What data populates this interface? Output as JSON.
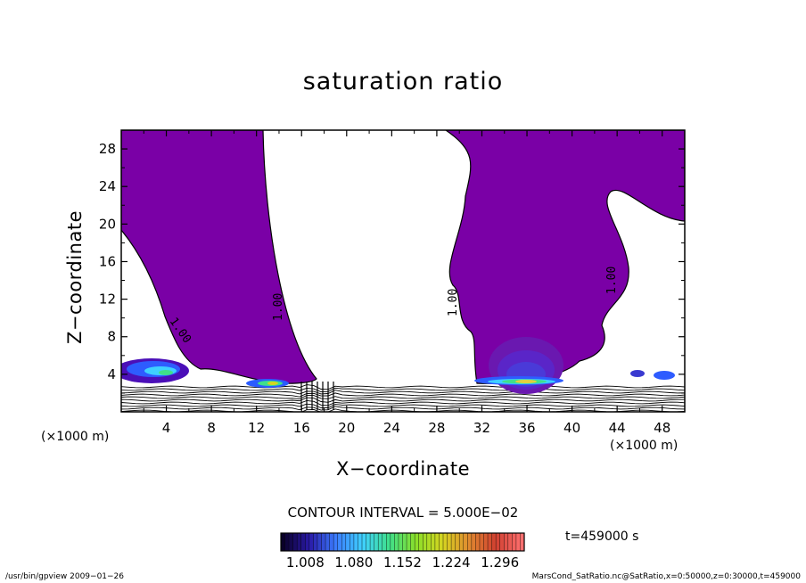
{
  "chart_data": {
    "type": "contour",
    "title": "saturation ratio",
    "xlabel": "X−coordinate",
    "ylabel": "Z−coordinate",
    "x_unit_label": "(×1000 m)",
    "xlim": [
      0,
      50
    ],
    "ylim": [
      0,
      30
    ],
    "x_ticks": [
      "4",
      "8",
      "12",
      "16",
      "20",
      "24",
      "28",
      "32",
      "36",
      "40",
      "44",
      "48"
    ],
    "y_ticks": [
      "4",
      "8",
      "12",
      "16",
      "20",
      "24",
      "28"
    ],
    "contour_label": "1.00",
    "contour_interval_text": "CONTOUR INTERVAL = 5.000E−02",
    "time_text": "t=459000 s",
    "colorbar": {
      "labels": [
        "1.008",
        "1.080",
        "1.152",
        "1.224",
        "1.296"
      ],
      "min": 0.972,
      "max": 1.332,
      "colors": [
        "#0a0028",
        "#2a1aa8",
        "#3b7dff",
        "#3fd0ff",
        "#3fe08a",
        "#8adf2a",
        "#d6d520",
        "#e08a30",
        "#d04030",
        "#ff7070"
      ]
    },
    "saturated_region_color": "#7a00a6",
    "plumes": [
      {
        "x_center": 14.5,
        "z_top": 3.3
      },
      {
        "x_center": 35.2,
        "z_top": 8.5
      },
      {
        "x_center": 4.5,
        "z_top": 5.7
      },
      {
        "x_center": 46.5,
        "z_top": 4.5
      }
    ],
    "footer_left": "/usr/bin/gpview   2009−01−26",
    "footer_right": "MarsCond_SatRatio.nc@SatRatio,x=0:50000,z=0:30000,t=459000"
  }
}
